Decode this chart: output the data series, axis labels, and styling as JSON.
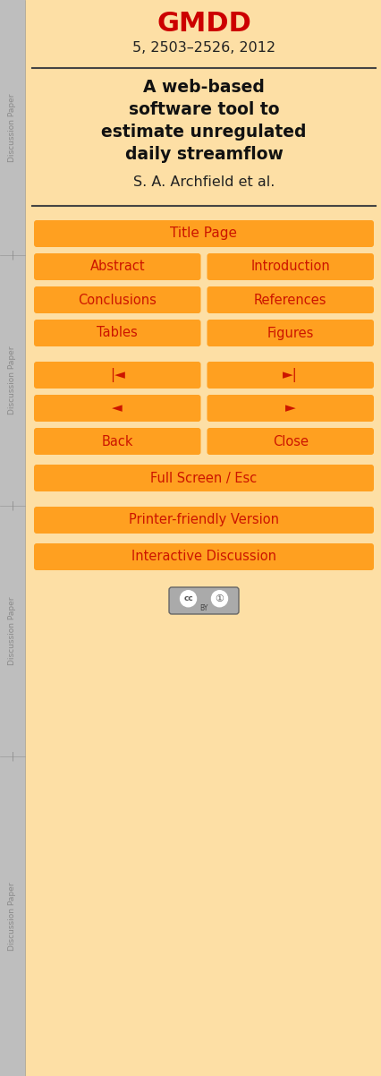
{
  "bg_color": "#FDDFA5",
  "sidebar_color": "#BEBEBE",
  "sidebar_text_color": "#8A8A8A",
  "gmdd_color": "#CC0000",
  "gmdd_text": "GMDD",
  "subtitle_text": "5, 2503–2526, 2012",
  "title_line1": "A web-based",
  "title_line2": "software tool to",
  "title_line3": "estimate unregulated",
  "title_line4": "daily streamflow",
  "author_text": "S. A. Archfield et al.",
  "divider_color": "#444444",
  "button_bg": "#FFA020",
  "button_text_color": "#CC1500",
  "fig_width": 4.26,
  "fig_height": 12.02,
  "dpi": 100
}
